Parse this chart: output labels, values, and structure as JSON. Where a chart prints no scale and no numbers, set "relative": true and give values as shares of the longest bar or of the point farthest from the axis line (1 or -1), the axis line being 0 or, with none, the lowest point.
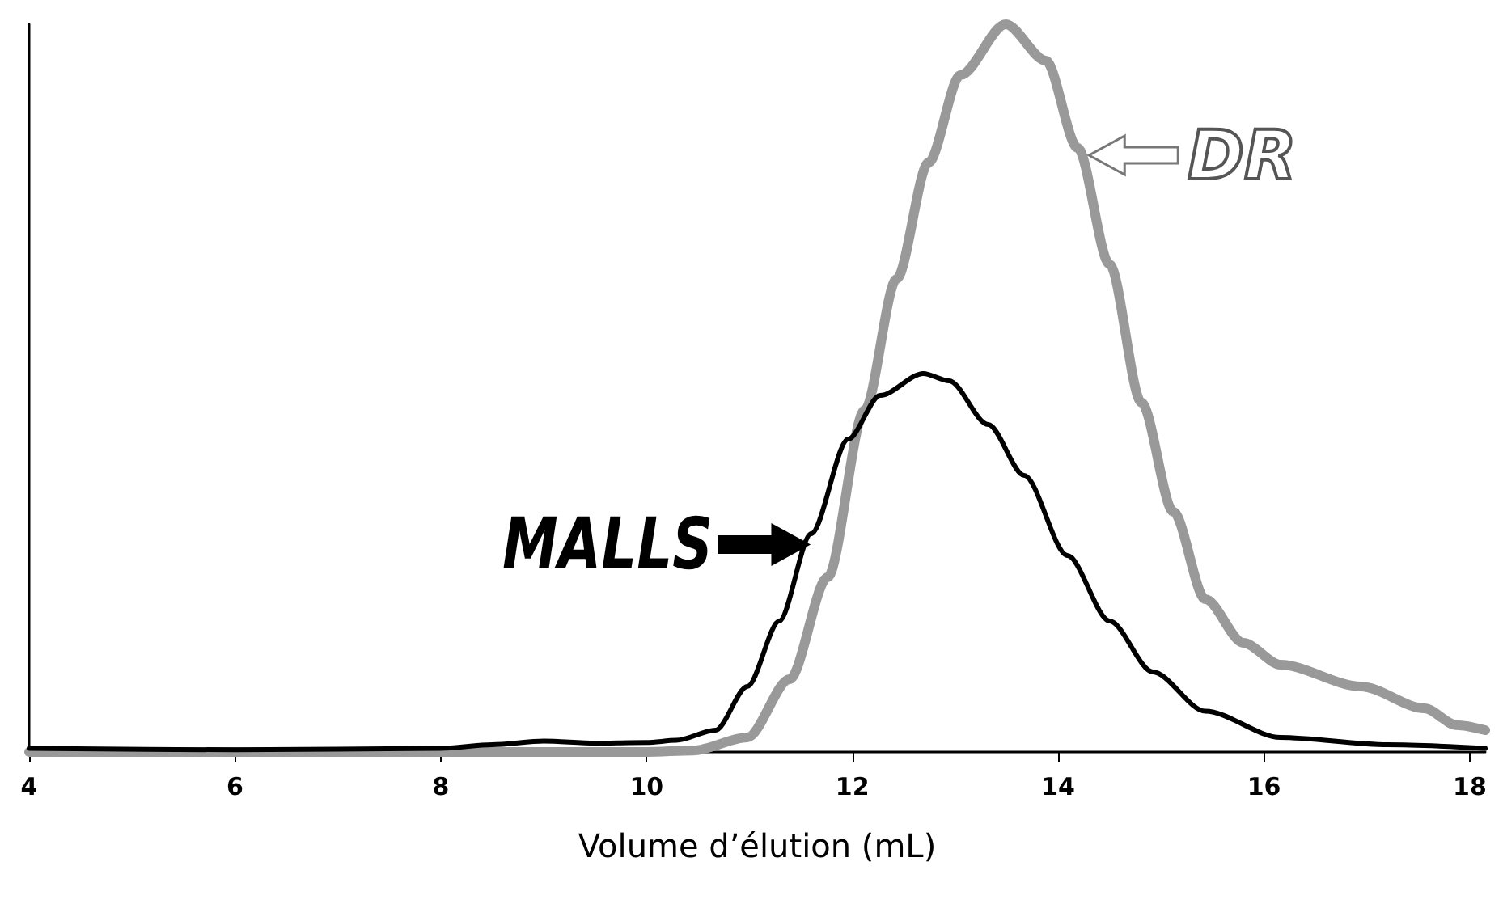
{
  "chart_data": {
    "type": "line",
    "relative": true,
    "xlabel": "Volume d’élution (mL)",
    "xlim": [
      4,
      18.15
    ],
    "xticks": [
      4,
      6,
      8,
      10,
      12,
      14,
      16,
      18
    ],
    "grid": false,
    "marker": "none",
    "line_style": "solid",
    "series": [
      {
        "color": "#000000",
        "x": [
          4,
          6,
          8,
          8.5,
          9,
          9.5,
          10,
          10.29,
          10.67,
          10.98,
          11.29,
          11.6,
          11.96,
          12.27,
          12.69,
          12.94,
          13.32,
          13.67,
          14.09,
          14.5,
          14.92,
          15.43,
          16.16,
          17.2,
          18.15
        ],
        "values": [
          0.005,
          0.003,
          0.005,
          0.01,
          0.015,
          0.012,
          0.013,
          0.016,
          0.03,
          0.09,
          0.18,
          0.3,
          0.43,
          0.49,
          0.52,
          0.51,
          0.45,
          0.38,
          0.27,
          0.18,
          0.11,
          0.056,
          0.02,
          0.01,
          0.005
        ]
      },
      {
        "color": "#999999",
        "x": [
          4,
          8,
          10,
          10.45,
          10.98,
          11.39,
          11.76,
          12.12,
          12.43,
          12.74,
          13.05,
          13.49,
          13.88,
          14.19,
          14.5,
          14.81,
          15.12,
          15.43,
          15.8,
          16.16,
          16.94,
          17.56,
          17.87,
          18.15
        ],
        "values": [
          0,
          0,
          0,
          0.002,
          0.02,
          0.1,
          0.24,
          0.47,
          0.65,
          0.81,
          0.93,
          1,
          0.95,
          0.83,
          0.67,
          0.48,
          0.33,
          0.21,
          0.15,
          0.12,
          0.09,
          0.06,
          0.037,
          0.03
        ]
      }
    ],
    "annotations": [
      {
        "text": "MALLS",
        "x": 11.57,
        "y": 0.285
      },
      {
        "text": "DR",
        "x": 14.3,
        "y": 0.82
      }
    ]
  }
}
